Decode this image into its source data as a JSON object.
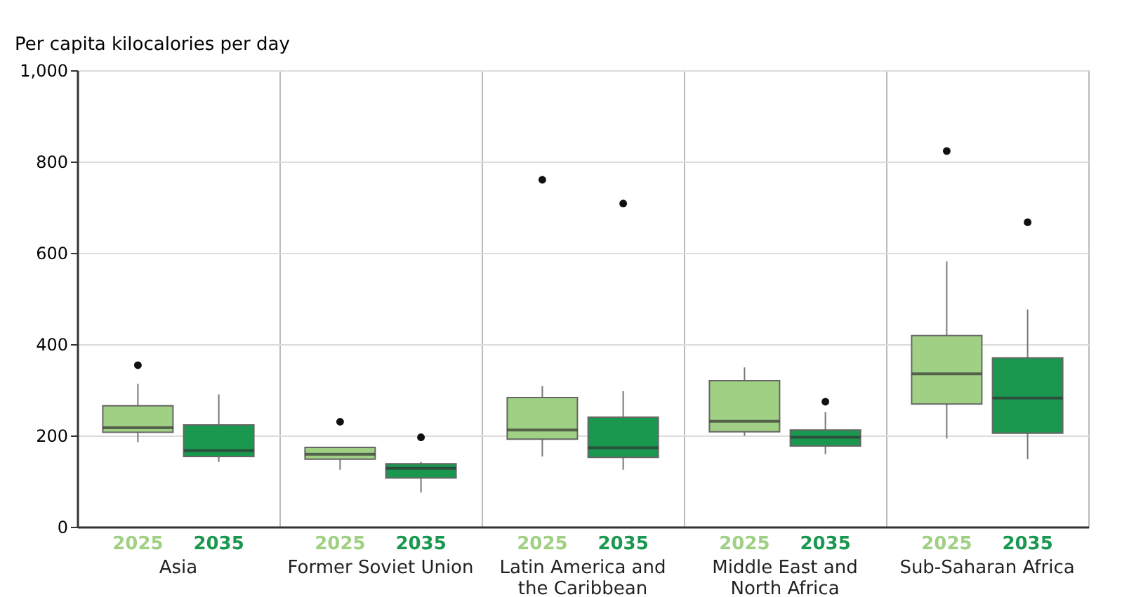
{
  "chart_data": {
    "type": "box",
    "ylabel": "Per capita kilocalories per day",
    "categories": [
      "Asia",
      "Former Soviet Union",
      "Latin America and the Caribbean",
      "Middle East and North Africa",
      "Sub-Saharan Africa"
    ],
    "ylim": [
      0,
      1000
    ],
    "yticks": [
      0,
      200,
      400,
      600,
      800,
      {
        "value": 1000,
        "label": "1,000"
      }
    ],
    "grid": true,
    "series": [
      {
        "name": "2025",
        "color": "#a0d084",
        "boxes": [
          {
            "low": 185,
            "q1": 207,
            "median": 217,
            "q3": 265,
            "high": 313,
            "outliers": [
              354
            ]
          },
          {
            "low": 125,
            "q1": 148,
            "median": 159,
            "q3": 174,
            "high": 174,
            "outliers": [
              230
            ]
          },
          {
            "low": 154,
            "q1": 192,
            "median": 212,
            "q3": 283,
            "high": 308,
            "outliers": [
              760
            ]
          },
          {
            "low": 199,
            "q1": 208,
            "median": 231,
            "q3": 320,
            "high": 349
          },
          {
            "low": 193,
            "q1": 269,
            "median": 335,
            "q3": 419,
            "high": 581,
            "outliers": [
              823
            ]
          }
        ]
      },
      {
        "name": "2035",
        "color": "#1a9850",
        "boxes": [
          {
            "low": 142,
            "q1": 154,
            "median": 167,
            "q3": 223,
            "high": 290
          },
          {
            "low": 75,
            "q1": 107,
            "median": 128,
            "q3": 138,
            "high": 142,
            "outliers": [
              196
            ]
          },
          {
            "low": 125,
            "q1": 152,
            "median": 173,
            "q3": 240,
            "high": 297,
            "outliers": [
              708
            ]
          },
          {
            "low": 159,
            "q1": 177,
            "median": 196,
            "q3": 212,
            "high": 251,
            "outliers": [
              274
            ]
          },
          {
            "low": 148,
            "q1": 205,
            "median": 282,
            "q3": 370,
            "high": 476,
            "outliers": [
              667
            ]
          }
        ]
      }
    ]
  }
}
